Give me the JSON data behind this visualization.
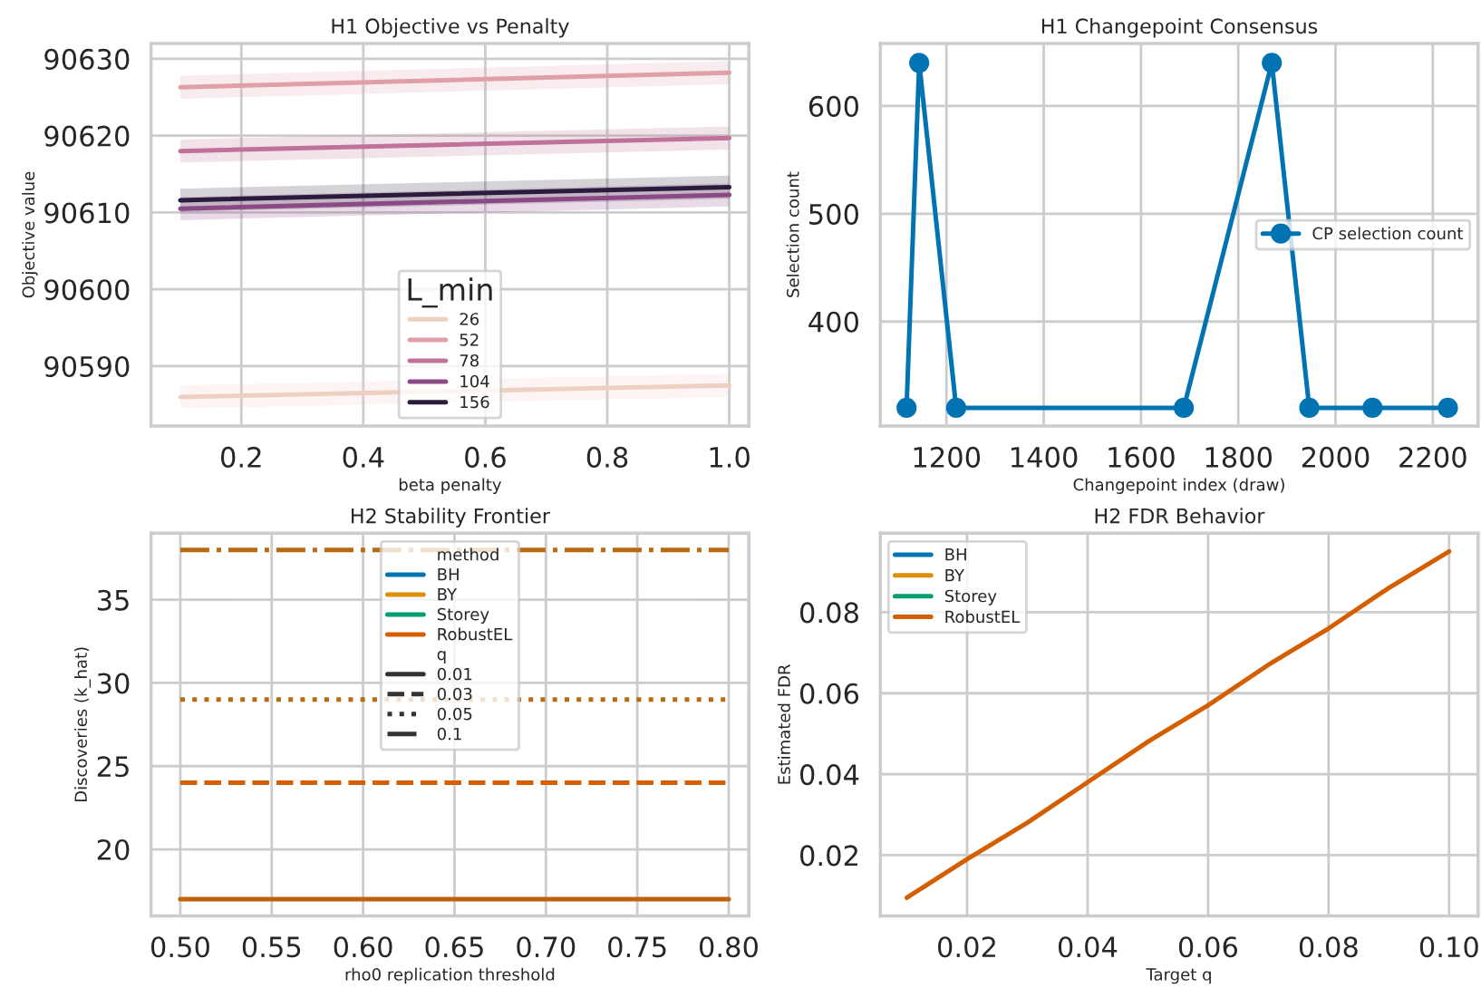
{
  "chart_data": [
    {
      "type": "line",
      "title": "H1 Objective vs Penalty",
      "xlabel": "beta penalty",
      "ylabel": "Objective value",
      "legend_title": "L_min",
      "legend": "bottom",
      "grid": true,
      "xlim": [
        0.052,
        1.032
      ],
      "xticks": [
        0.2,
        0.4,
        0.6,
        0.8,
        {
          "value": 1.0,
          "label": "1.0"
        }
      ],
      "ylim": [
        90582.2,
        90632
      ],
      "yticks": [
        90590,
        90600,
        90610,
        90620,
        90630
      ],
      "series": [
        {
          "name": "26",
          "color": "#f0cfc3",
          "x": [
            0.1,
            1.0
          ],
          "values": [
            90586,
            90587.5
          ],
          "lower": [
            90584.5,
            90586
          ],
          "upper": [
            90587.5,
            90589
          ]
        },
        {
          "name": "52",
          "color": "#dfa0a8",
          "x": [
            0.1,
            1.0
          ],
          "values": [
            90626.3,
            90628.2
          ],
          "lower": [
            90624.8,
            90626.7
          ],
          "upper": [
            90627.8,
            90629.7
          ]
        },
        {
          "name": "78",
          "color": "#c0729a",
          "x": [
            0.1,
            1.0
          ],
          "values": [
            90618,
            90619.7
          ],
          "lower": [
            90616.5,
            90618.2
          ],
          "upper": [
            90619.5,
            90621.2
          ]
        },
        {
          "name": "104",
          "color": "#8b4a86",
          "x": [
            0.1,
            1.0
          ],
          "values": [
            90610.5,
            90612.3
          ],
          "lower": [
            90609,
            90610.8
          ],
          "upper": [
            90612,
            90613.8
          ]
        },
        {
          "name": "156",
          "color": "#2b1c3d",
          "x": [
            0.1,
            1.0
          ],
          "values": [
            90611.6,
            90613.3
          ],
          "lower": [
            90610.1,
            90611.8
          ],
          "upper": [
            90613.1,
            90614.8
          ]
        }
      ]
    },
    {
      "type": "line",
      "title": "H1 Changepoint Consensus",
      "xlabel": "Changepoint index (draw)",
      "ylabel": "Selection count",
      "legend": "right",
      "grid": true,
      "marker": "circle",
      "xlim": [
        1064,
        2293
      ],
      "xticks": [
        1200,
        1400,
        1600,
        1800,
        2000,
        2200
      ],
      "ylim": [
        303,
        658
      ],
      "yticks": [
        400,
        500,
        600
      ],
      "series": [
        {
          "name": "CP selection count",
          "color": "#0173b2",
          "x": [
            1118,
            1144,
            1220,
            1688,
            1869,
            1946,
            2076,
            2231
          ],
          "values": [
            320,
            640,
            320,
            320,
            640,
            320,
            320,
            320
          ]
        }
      ]
    },
    {
      "type": "line",
      "title": "H2 Stability Frontier",
      "xlabel": "rho0 replication threshold",
      "ylabel": "Discoveries (k_hat)",
      "legend_title": [
        "method",
        "q"
      ],
      "legend": "top",
      "grid": true,
      "xlim": [
        0.484,
        0.811
      ],
      "xticks": [
        {
          "value": 0.5,
          "label": "0.50"
        },
        {
          "value": 0.55,
          "label": "0.55"
        },
        {
          "value": 0.6,
          "label": "0.60"
        },
        {
          "value": 0.65,
          "label": "0.65"
        },
        {
          "value": 0.7,
          "label": "0.70"
        },
        {
          "value": 0.75,
          "label": "0.75"
        },
        {
          "value": 0.8,
          "label": "0.80"
        }
      ],
      "ylim": [
        16,
        39
      ],
      "yticks": [
        20,
        25,
        30,
        35
      ],
      "series": [
        {
          "name": "BH",
          "color": "#0173b2",
          "values": [
            null,
            null
          ]
        },
        {
          "name": "BY",
          "color": "#de8f05",
          "values": [
            null,
            null
          ]
        },
        {
          "name": "Storey",
          "color": "#029e73",
          "values": [
            null,
            null
          ]
        },
        {
          "name": "RobustEL",
          "color": "#d55e00",
          "values": [
            null,
            null
          ]
        },
        {
          "name": "0.01",
          "line_style": "solid",
          "color": "#333333",
          "values": [
            null,
            null
          ]
        },
        {
          "name": "0.03",
          "line_style": "dashed",
          "color": "#333333",
          "values": [
            null,
            null
          ]
        },
        {
          "name": "0.05",
          "line_style": "dotted",
          "color": "#333333",
          "values": [
            null,
            null
          ]
        },
        {
          "name": "0.1",
          "line_style": "dashdot",
          "color": "#333333",
          "values": [
            null,
            null
          ]
        },
        {
          "line_style": "solid",
          "color": "#c0620a",
          "x": [
            0.5,
            0.8
          ],
          "values": [
            17,
            17
          ]
        },
        {
          "line_style": "dashed",
          "color": "#d55e00",
          "x": [
            0.5,
            0.8
          ],
          "values": [
            24,
            24
          ]
        },
        {
          "line_style": "dotted",
          "color": "#b86a10",
          "x": [
            0.5,
            0.8
          ],
          "values": [
            29,
            29
          ]
        },
        {
          "line_style": "dashdot",
          "color": "#b86a10",
          "x": [
            0.5,
            0.8
          ],
          "values": [
            38,
            38
          ]
        }
      ]
    },
    {
      "type": "line",
      "title": "H2 FDR Behavior",
      "xlabel": "Target q",
      "ylabel": "Estimated FDR",
      "legend": "top left",
      "grid": true,
      "xlim": [
        0.0056,
        0.1048
      ],
      "xticks": [
        0.02,
        0.04,
        0.06,
        0.08,
        {
          "value": 0.1,
          "label": "0.10"
        }
      ],
      "ylim": [
        0.005,
        0.0995
      ],
      "yticks": [
        0.02,
        0.04,
        0.06,
        0.08
      ],
      "series": [
        {
          "name": "BH",
          "color": "#0173b2",
          "values": [
            null,
            null
          ]
        },
        {
          "name": "BY",
          "color": "#de8f05",
          "values": [
            null,
            null
          ]
        },
        {
          "name": "Storey",
          "color": "#029e73",
          "values": [
            null,
            null
          ]
        },
        {
          "name": "RobustEL",
          "color": "#d55e00",
          "x": [
            0.01,
            0.02,
            0.03,
            0.04,
            0.05,
            0.06,
            0.07,
            0.08,
            0.09,
            0.1
          ],
          "values": [
            0.0095,
            0.019,
            0.028,
            0.038,
            0.048,
            0.057,
            0.067,
            0.076,
            0.086,
            0.095
          ]
        }
      ]
    }
  ]
}
